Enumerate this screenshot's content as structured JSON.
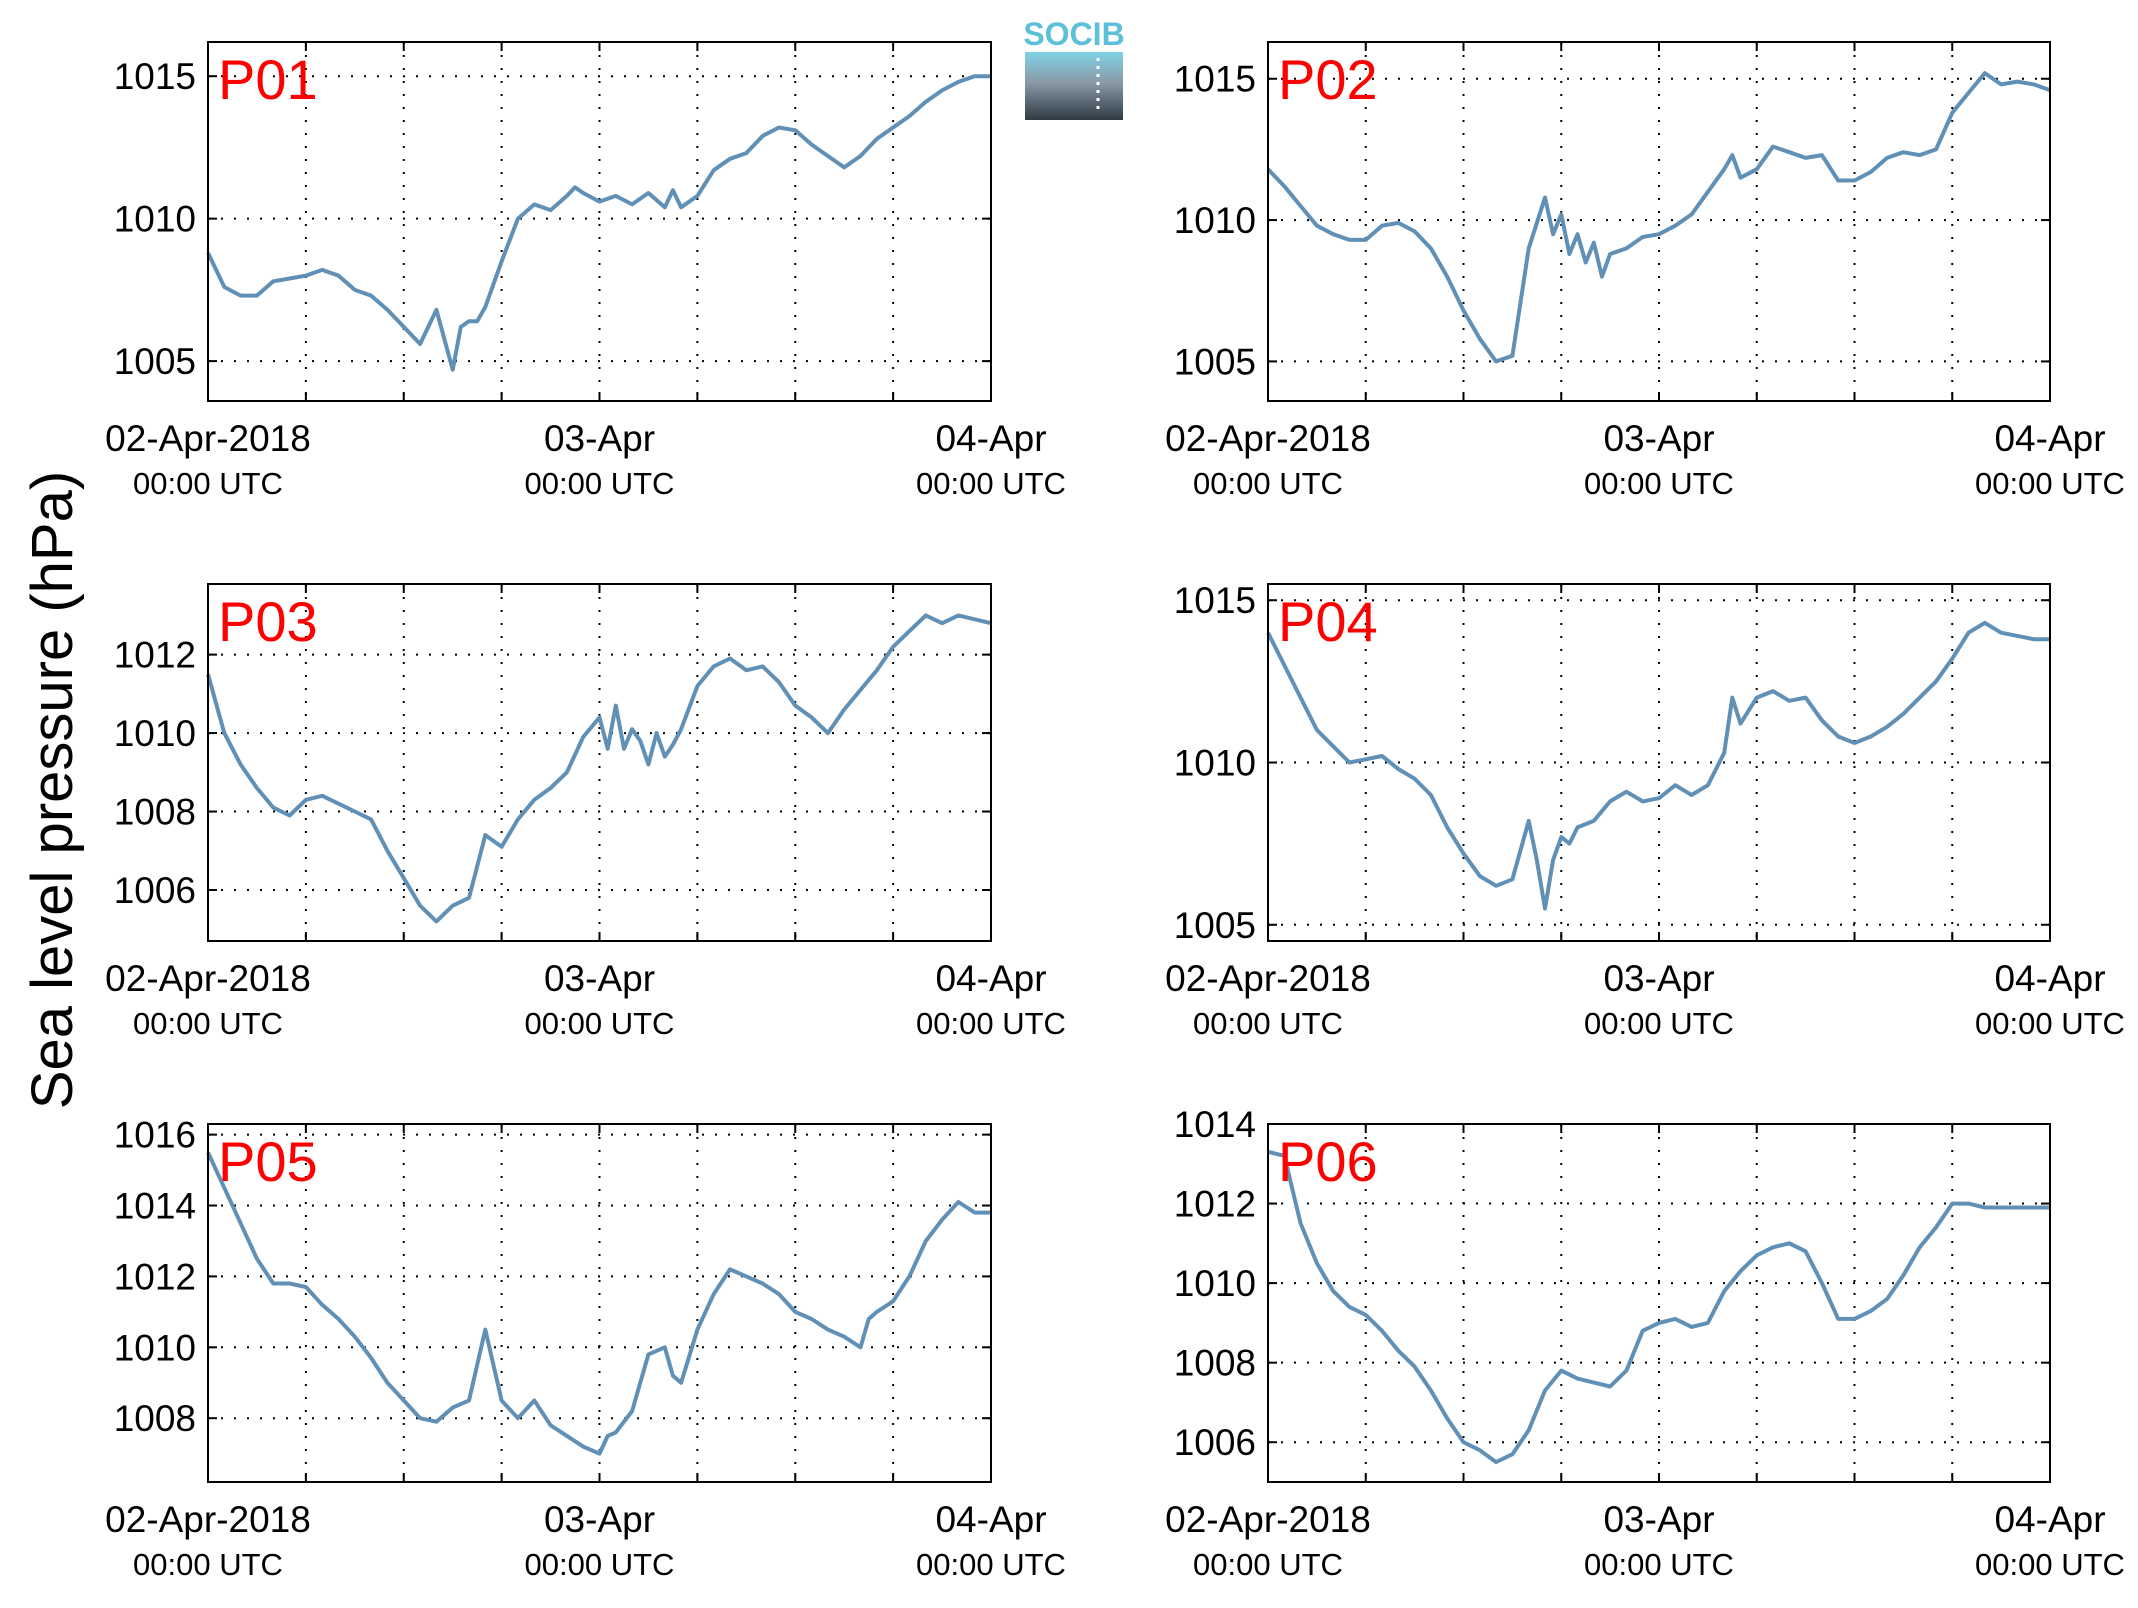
{
  "figure": {
    "ylabel": "Sea level pressure (hPa)",
    "logo_text": "SOCIB",
    "line_color": "#6190b6",
    "panel_label_color": "#ff0000",
    "x_ticks": [
      {
        "x": 0,
        "line1": "02-Apr-2018",
        "line2": "00:00 UTC"
      },
      {
        "x": 24,
        "line1": "03-Apr",
        "line2": "00:00 UTC"
      },
      {
        "x": 48,
        "line1": "04-Apr",
        "line2": "00:00 UTC"
      }
    ],
    "x_grid_hours": [
      6,
      12,
      18,
      24,
      30,
      36,
      42
    ],
    "x_units": "hours since 02-Apr-2018 00:00 UTC"
  },
  "chart_data": [
    {
      "type": "line",
      "label": "P01",
      "xlim": [
        0,
        48
      ],
      "ylim": [
        1003.6,
        1016.2
      ],
      "yticks": [
        1005,
        1010,
        1015
      ],
      "x": [
        0,
        1,
        2,
        3,
        4,
        5,
        6,
        7,
        8,
        9,
        10,
        11,
        12,
        13,
        14,
        15,
        15.5,
        16,
        16.5,
        17,
        18,
        19,
        20,
        21,
        22,
        22.5,
        23,
        24,
        25,
        26,
        27,
        28,
        28.5,
        29,
        30,
        31,
        32,
        33,
        34,
        35,
        36,
        37,
        38,
        39,
        40,
        41,
        42,
        43,
        44,
        45,
        46,
        47,
        48
      ],
      "values": [
        1008.8,
        1007.6,
        1007.3,
        1007.3,
        1007.8,
        1007.9,
        1008.0,
        1008.2,
        1008.0,
        1007.5,
        1007.3,
        1006.8,
        1006.2,
        1005.6,
        1006.8,
        1004.7,
        1006.2,
        1006.4,
        1006.4,
        1006.9,
        1008.5,
        1010.0,
        1010.5,
        1010.3,
        1010.8,
        1011.1,
        1010.9,
        1010.6,
        1010.8,
        1010.5,
        1010.9,
        1010.4,
        1011.0,
        1010.4,
        1010.8,
        1011.7,
        1012.1,
        1012.3,
        1012.9,
        1013.2,
        1013.1,
        1012.6,
        1012.2,
        1011.8,
        1012.2,
        1012.8,
        1013.2,
        1013.6,
        1014.1,
        1014.5,
        1014.8,
        1015.0,
        1015.0
      ],
      "grid": true
    },
    {
      "type": "line",
      "label": "P02",
      "xlim": [
        0,
        48
      ],
      "ylim": [
        1003.6,
        1016.3
      ],
      "yticks": [
        1005,
        1010,
        1015
      ],
      "x": [
        0,
        1,
        2,
        3,
        4,
        5,
        6,
        7,
        8,
        9,
        10,
        11,
        12,
        13,
        14,
        15,
        16,
        17,
        17.5,
        18,
        18.5,
        19,
        19.5,
        20,
        20.5,
        21,
        22,
        23,
        24,
        25,
        26,
        27,
        28,
        28.5,
        29,
        30,
        31,
        32,
        33,
        34,
        35,
        36,
        37,
        38,
        39,
        40,
        41,
        42,
        43,
        44,
        45,
        46,
        47,
        48
      ],
      "values": [
        1011.8,
        1011.2,
        1010.5,
        1009.8,
        1009.5,
        1009.3,
        1009.3,
        1009.8,
        1009.9,
        1009.6,
        1009.0,
        1008.0,
        1006.8,
        1005.8,
        1005.0,
        1005.2,
        1009.0,
        1010.8,
        1009.5,
        1010.2,
        1008.8,
        1009.5,
        1008.5,
        1009.2,
        1008.0,
        1008.8,
        1009.0,
        1009.4,
        1009.5,
        1009.8,
        1010.2,
        1011.0,
        1011.8,
        1012.3,
        1011.5,
        1011.8,
        1012.6,
        1012.4,
        1012.2,
        1012.3,
        1011.4,
        1011.4,
        1011.7,
        1012.2,
        1012.4,
        1012.3,
        1012.5,
        1013.8,
        1014.5,
        1015.2,
        1014.8,
        1014.9,
        1014.8,
        1014.6
      ],
      "grid": true
    },
    {
      "type": "line",
      "label": "P03",
      "xlim": [
        0,
        48
      ],
      "ylim": [
        1004.7,
        1013.8
      ],
      "yticks": [
        1006,
        1008,
        1010,
        1012
      ],
      "x": [
        0,
        1,
        2,
        3,
        4,
        5,
        6,
        7,
        8,
        9,
        10,
        11,
        12,
        13,
        14,
        15,
        15.5,
        16,
        17,
        18,
        19,
        20,
        21,
        22,
        23,
        24,
        24.5,
        25,
        25.5,
        26,
        26.5,
        27,
        27.5,
        28,
        28.5,
        29,
        30,
        31,
        32,
        33,
        34,
        35,
        36,
        37,
        38,
        39,
        40,
        41,
        42,
        43,
        44,
        45,
        46,
        47,
        48
      ],
      "values": [
        1011.5,
        1010.0,
        1009.2,
        1008.6,
        1008.1,
        1007.9,
        1008.3,
        1008.4,
        1008.2,
        1008.0,
        1007.8,
        1007.0,
        1006.3,
        1005.6,
        1005.2,
        1005.6,
        1005.7,
        1005.8,
        1007.4,
        1007.1,
        1007.8,
        1008.3,
        1008.6,
        1009.0,
        1009.9,
        1010.4,
        1009.6,
        1010.7,
        1009.6,
        1010.1,
        1009.8,
        1009.2,
        1010.0,
        1009.4,
        1009.7,
        1010.1,
        1011.2,
        1011.7,
        1011.9,
        1011.6,
        1011.7,
        1011.3,
        1010.7,
        1010.4,
        1010.0,
        1010.6,
        1011.1,
        1011.6,
        1012.2,
        1012.6,
        1013.0,
        1012.8,
        1013.0,
        1012.9,
        1012.8
      ],
      "grid": true
    },
    {
      "type": "line",
      "label": "P04",
      "xlim": [
        0,
        48
      ],
      "ylim": [
        1004.5,
        1015.5
      ],
      "yticks": [
        1005,
        1010,
        1015
      ],
      "x": [
        0,
        1,
        2,
        3,
        4,
        5,
        6,
        7,
        8,
        9,
        10,
        11,
        12,
        13,
        14,
        15,
        16,
        16.5,
        17,
        17.5,
        18,
        18.5,
        19,
        20,
        21,
        22,
        23,
        24,
        25,
        26,
        27,
        28,
        28.5,
        29,
        30,
        31,
        32,
        33,
        34,
        35,
        36,
        37,
        38,
        39,
        40,
        41,
        42,
        43,
        44,
        45,
        46,
        47,
        48
      ],
      "values": [
        1014.0,
        1013.0,
        1012.0,
        1011.0,
        1010.5,
        1010.0,
        1010.1,
        1010.2,
        1009.8,
        1009.5,
        1009.0,
        1008.0,
        1007.2,
        1006.5,
        1006.2,
        1006.4,
        1008.2,
        1007.0,
        1005.5,
        1007.0,
        1007.7,
        1007.5,
        1008.0,
        1008.2,
        1008.8,
        1009.1,
        1008.8,
        1008.9,
        1009.3,
        1009.0,
        1009.3,
        1010.3,
        1012.0,
        1011.2,
        1012.0,
        1012.2,
        1011.9,
        1012.0,
        1011.3,
        1010.8,
        1010.6,
        1010.8,
        1011.1,
        1011.5,
        1012.0,
        1012.5,
        1013.2,
        1014.0,
        1014.3,
        1014.0,
        1013.9,
        1013.8,
        1013.8
      ],
      "grid": true
    },
    {
      "type": "line",
      "label": "P05",
      "xlim": [
        0,
        48
      ],
      "ylim": [
        1006.2,
        1016.3
      ],
      "yticks": [
        1008,
        1010,
        1012,
        1014,
        1016
      ],
      "x": [
        0,
        1,
        2,
        3,
        4,
        5,
        6,
        7,
        8,
        9,
        10,
        11,
        12,
        13,
        14,
        15,
        16,
        17,
        18,
        19,
        20,
        21,
        22,
        23,
        24,
        24.5,
        25,
        26,
        27,
        28,
        28.5,
        29,
        30,
        31,
        32,
        33,
        34,
        35,
        36,
        37,
        38,
        39,
        40,
        40.5,
        41,
        42,
        43,
        44,
        45,
        46,
        47,
        48
      ],
      "values": [
        1015.5,
        1014.5,
        1013.5,
        1012.5,
        1011.8,
        1011.8,
        1011.7,
        1011.2,
        1010.8,
        1010.3,
        1009.7,
        1009.0,
        1008.5,
        1008.0,
        1007.9,
        1008.3,
        1008.5,
        1010.5,
        1008.5,
        1008.0,
        1008.5,
        1007.8,
        1007.5,
        1007.2,
        1007.0,
        1007.5,
        1007.6,
        1008.2,
        1009.8,
        1010.0,
        1009.2,
        1009.0,
        1010.5,
        1011.5,
        1012.2,
        1012.0,
        1011.8,
        1011.5,
        1011.0,
        1010.8,
        1010.5,
        1010.3,
        1010.0,
        1010.8,
        1011.0,
        1011.3,
        1012.0,
        1013.0,
        1013.6,
        1014.1,
        1013.8,
        1013.8
      ],
      "grid": true
    },
    {
      "type": "line",
      "label": "P06",
      "xlim": [
        0,
        48
      ],
      "ylim": [
        1005.0,
        1014.0
      ],
      "yticks": [
        1006,
        1008,
        1010,
        1012,
        1014
      ],
      "x": [
        0,
        1,
        2,
        3,
        4,
        5,
        6,
        7,
        8,
        9,
        10,
        11,
        12,
        13,
        14,
        15,
        16,
        17,
        18,
        19,
        20,
        21,
        22,
        23,
        24,
        25,
        26,
        27,
        28,
        29,
        30,
        31,
        32,
        33,
        34,
        35,
        36,
        37,
        38,
        39,
        40,
        41,
        42,
        43,
        44,
        45,
        46,
        47,
        48
      ],
      "values": [
        1013.3,
        1013.2,
        1011.5,
        1010.5,
        1009.8,
        1009.4,
        1009.2,
        1008.8,
        1008.3,
        1007.9,
        1007.3,
        1006.6,
        1006.0,
        1005.8,
        1005.5,
        1005.7,
        1006.3,
        1007.3,
        1007.8,
        1007.6,
        1007.5,
        1007.4,
        1007.8,
        1008.8,
        1009.0,
        1009.1,
        1008.9,
        1009.0,
        1009.8,
        1010.3,
        1010.7,
        1010.9,
        1011.0,
        1010.8,
        1010.0,
        1009.1,
        1009.1,
        1009.3,
        1009.6,
        1010.2,
        1010.9,
        1011.4,
        1012.0,
        1012.0,
        1011.9,
        1011.9,
        1011.9,
        1011.9,
        1011.9
      ],
      "grid": true
    }
  ]
}
